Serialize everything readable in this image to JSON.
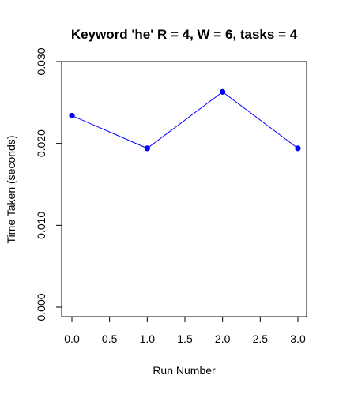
{
  "chart_data": {
    "type": "line",
    "title": "Keyword 'he' R = 4, W = 6, tasks = 4",
    "xlabel": "Run Number",
    "ylabel": "Time Taken (seconds)",
    "xlim": [
      0.0,
      3.0
    ],
    "ylim": [
      0.0,
      0.03
    ],
    "x_ticks": [
      0.0,
      0.5,
      1.0,
      1.5,
      2.0,
      2.5,
      3.0
    ],
    "x_tick_labels": [
      "0.0",
      "0.5",
      "1.0",
      "1.5",
      "2.0",
      "2.5",
      "3.0"
    ],
    "y_ticks": [
      0.0,
      0.01,
      0.02,
      0.03
    ],
    "y_tick_labels": [
      "0.000",
      "0.010",
      "0.020",
      "0.030"
    ],
    "grid": false,
    "series": [
      {
        "color": "#0000ff",
        "x": [
          0,
          1,
          2,
          3
        ],
        "y": [
          0.0234,
          0.0194,
          0.0263,
          0.0194
        ]
      }
    ]
  }
}
